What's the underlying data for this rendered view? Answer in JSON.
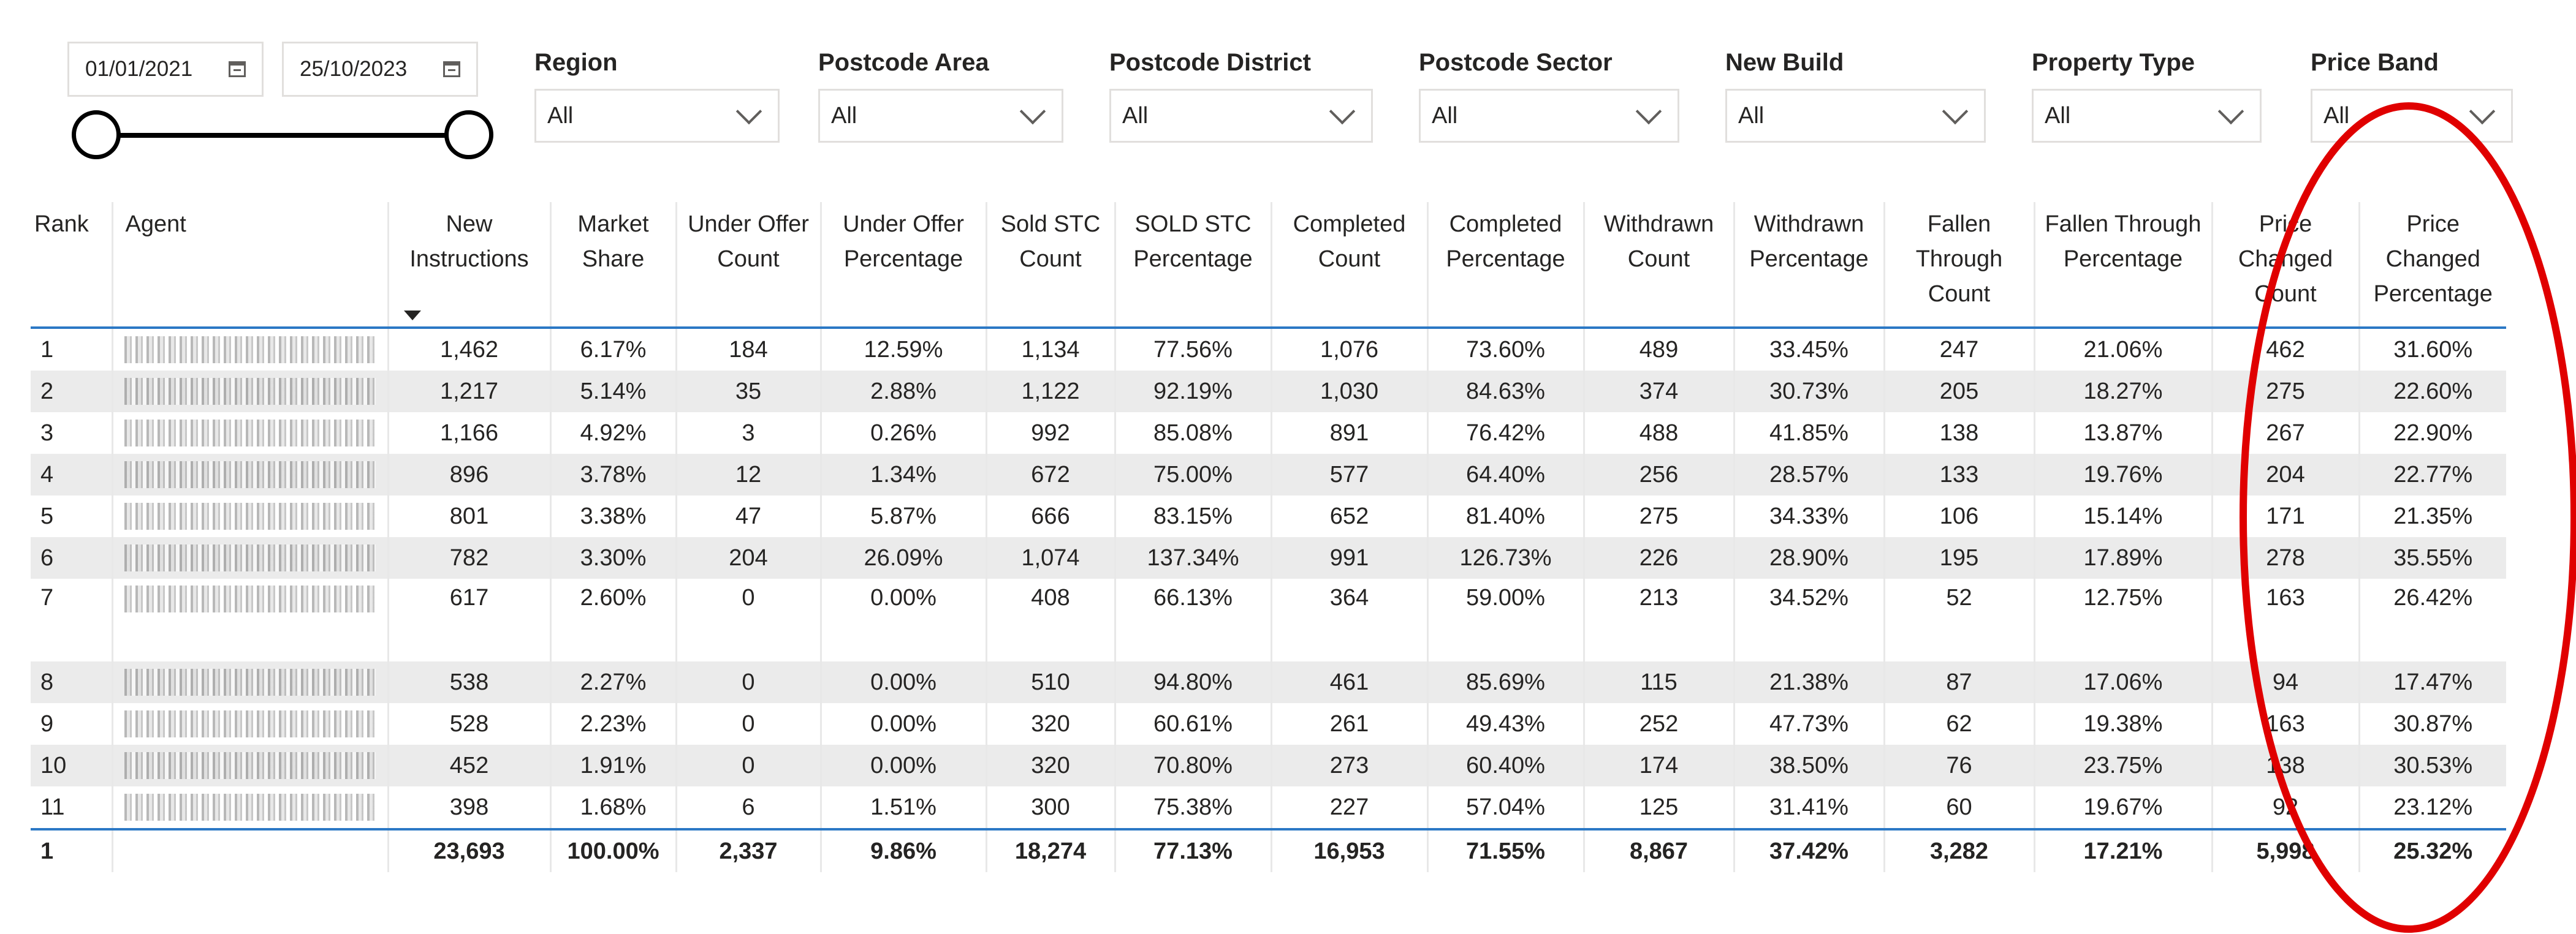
{
  "date_slicer": {
    "start": "01/01/2021",
    "end": "25/10/2023"
  },
  "slicers": [
    {
      "label": "Region",
      "value": "All"
    },
    {
      "label": "Postcode Area",
      "value": "All"
    },
    {
      "label": "Postcode District",
      "value": "All"
    },
    {
      "label": "Postcode Sector",
      "value": "All"
    },
    {
      "label": "New Build",
      "value": "All"
    },
    {
      "label": "Property Type",
      "value": "All"
    },
    {
      "label": "Price Band",
      "value": "All"
    }
  ],
  "table": {
    "headers": [
      "Rank",
      "Agent",
      "New Instructions",
      "Market Share",
      "Under Offer Count",
      "Under Offer Percentage",
      "Sold STC Count",
      "SOLD STC Percentage",
      "Completed Count",
      "Completed Percentage",
      "Withdrawn Count",
      "Withdrawn Percentage",
      "Fallen Through Count",
      "Fallen Through Percentage",
      "Price Changed Count",
      "Price Changed Percentage"
    ],
    "rows": [
      [
        "1",
        "",
        "1,462",
        "6.17%",
        "184",
        "12.59%",
        "1,134",
        "77.56%",
        "1,076",
        "73.60%",
        "489",
        "33.45%",
        "247",
        "21.06%",
        "462",
        "31.60%"
      ],
      [
        "2",
        "",
        "1,217",
        "5.14%",
        "35",
        "2.88%",
        "1,122",
        "92.19%",
        "1,030",
        "84.63%",
        "374",
        "30.73%",
        "205",
        "18.27%",
        "275",
        "22.60%"
      ],
      [
        "3",
        "",
        "1,166",
        "4.92%",
        "3",
        "0.26%",
        "992",
        "85.08%",
        "891",
        "76.42%",
        "488",
        "41.85%",
        "138",
        "13.87%",
        "267",
        "22.90%"
      ],
      [
        "4",
        "",
        "896",
        "3.78%",
        "12",
        "1.34%",
        "672",
        "75.00%",
        "577",
        "64.40%",
        "256",
        "28.57%",
        "133",
        "19.76%",
        "204",
        "22.77%"
      ],
      [
        "5",
        "",
        "801",
        "3.38%",
        "47",
        "5.87%",
        "666",
        "83.15%",
        "652",
        "81.40%",
        "275",
        "34.33%",
        "106",
        "15.14%",
        "171",
        "21.35%"
      ],
      [
        "6",
        "",
        "782",
        "3.30%",
        "204",
        "26.09%",
        "1,074",
        "137.34%",
        "991",
        "126.73%",
        "226",
        "28.90%",
        "195",
        "17.89%",
        "278",
        "35.55%"
      ],
      [
        "7",
        "",
        "617",
        "2.60%",
        "0",
        "0.00%",
        "408",
        "66.13%",
        "364",
        "59.00%",
        "213",
        "34.52%",
        "52",
        "12.75%",
        "163",
        "26.42%"
      ],
      [
        "8",
        "",
        "538",
        "2.27%",
        "0",
        "0.00%",
        "510",
        "94.80%",
        "461",
        "85.69%",
        "115",
        "21.38%",
        "87",
        "17.06%",
        "94",
        "17.47%"
      ],
      [
        "9",
        "",
        "528",
        "2.23%",
        "0",
        "0.00%",
        "320",
        "60.61%",
        "261",
        "49.43%",
        "252",
        "47.73%",
        "62",
        "19.38%",
        "163",
        "30.87%"
      ],
      [
        "10",
        "",
        "452",
        "1.91%",
        "0",
        "0.00%",
        "320",
        "70.80%",
        "273",
        "60.40%",
        "174",
        "38.50%",
        "76",
        "23.75%",
        "138",
        "30.53%"
      ],
      [
        "11",
        "",
        "398",
        "1.68%",
        "6",
        "1.51%",
        "300",
        "75.38%",
        "227",
        "57.04%",
        "125",
        "31.41%",
        "60",
        "19.67%",
        "92",
        "23.12%"
      ]
    ],
    "total": [
      "1",
      "",
      "23,693",
      "100.00%",
      "2,337",
      "9.86%",
      "18,274",
      "77.13%",
      "16,953",
      "71.55%",
      "8,867",
      "37.42%",
      "3,282",
      "17.21%",
      "5,998",
      "25.32%"
    ]
  },
  "colors": {
    "accent_line": "#2b78c5",
    "annotation": "#e00000",
    "row_alt": "#ebebeb"
  }
}
